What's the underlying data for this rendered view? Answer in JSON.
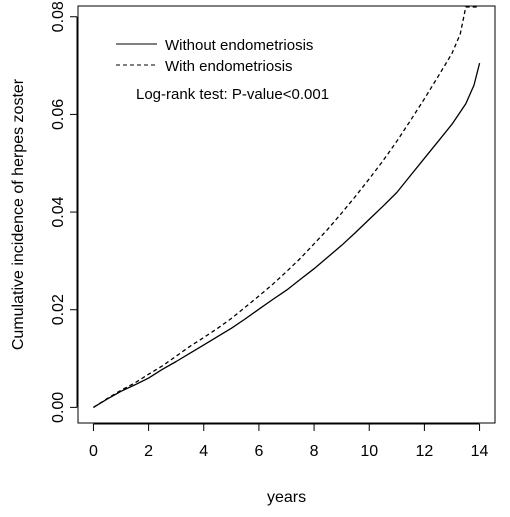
{
  "chart_data": {
    "type": "line",
    "title": "",
    "xlabel": "years",
    "ylabel": "Cumulative incidence of herpes zoster",
    "xlim": [
      -0.56,
      14.56
    ],
    "ylim": [
      -0.0032,
      0.0822
    ],
    "x_ticks": [
      0,
      2,
      4,
      6,
      8,
      10,
      12,
      14
    ],
    "x_tick_labels": [
      "0",
      "2",
      "4",
      "6",
      "8",
      "10",
      "12",
      "14"
    ],
    "y_ticks": [
      0,
      0.02,
      0.04,
      0.06,
      0.08
    ],
    "y_tick_labels": [
      "0.00",
      "0.02",
      "0.04",
      "0.06",
      "0.08"
    ],
    "grid": false,
    "legend_position": "top-left",
    "annotation": "Log-rank test: P-value<0.001",
    "series": [
      {
        "name": "Without endometriosis",
        "line_style": "solid",
        "x": [
          0,
          0.5,
          1,
          1.5,
          2,
          2.5,
          3,
          3.5,
          4,
          4.5,
          5,
          5.5,
          6,
          6.5,
          7,
          7.5,
          8,
          8.5,
          9,
          9.5,
          10,
          10.5,
          11,
          11.5,
          12,
          12.5,
          13,
          13.5,
          13.8,
          14
        ],
        "y": [
          0,
          0.0017,
          0.0033,
          0.0046,
          0.006,
          0.0078,
          0.0094,
          0.0111,
          0.0128,
          0.0145,
          0.0162,
          0.0181,
          0.0201,
          0.0221,
          0.024,
          0.0262,
          0.0284,
          0.0308,
          0.0332,
          0.0358,
          0.0385,
          0.0412,
          0.044,
          0.0475,
          0.051,
          0.0545,
          0.058,
          0.0622,
          0.066,
          0.0705
        ]
      },
      {
        "name": "With endometriosis",
        "line_style": "dashed",
        "x": [
          0,
          0.5,
          1,
          1.5,
          2,
          2.5,
          3,
          3.5,
          4,
          4.5,
          5,
          5.5,
          6,
          6.5,
          7,
          7.5,
          8,
          8.5,
          9,
          9.5,
          10,
          10.5,
          11,
          11.5,
          12,
          12.5,
          13,
          13.3,
          13.5,
          14
        ],
        "y": [
          0,
          0.0018,
          0.0035,
          0.005,
          0.0068,
          0.0085,
          0.0105,
          0.0125,
          0.0143,
          0.0162,
          0.0182,
          0.0205,
          0.0228,
          0.0252,
          0.0278,
          0.0305,
          0.0335,
          0.0365,
          0.0398,
          0.0432,
          0.0468,
          0.0505,
          0.0545,
          0.0588,
          0.0632,
          0.0678,
          0.0725,
          0.0765,
          0.082,
          0.082
        ]
      }
    ]
  }
}
